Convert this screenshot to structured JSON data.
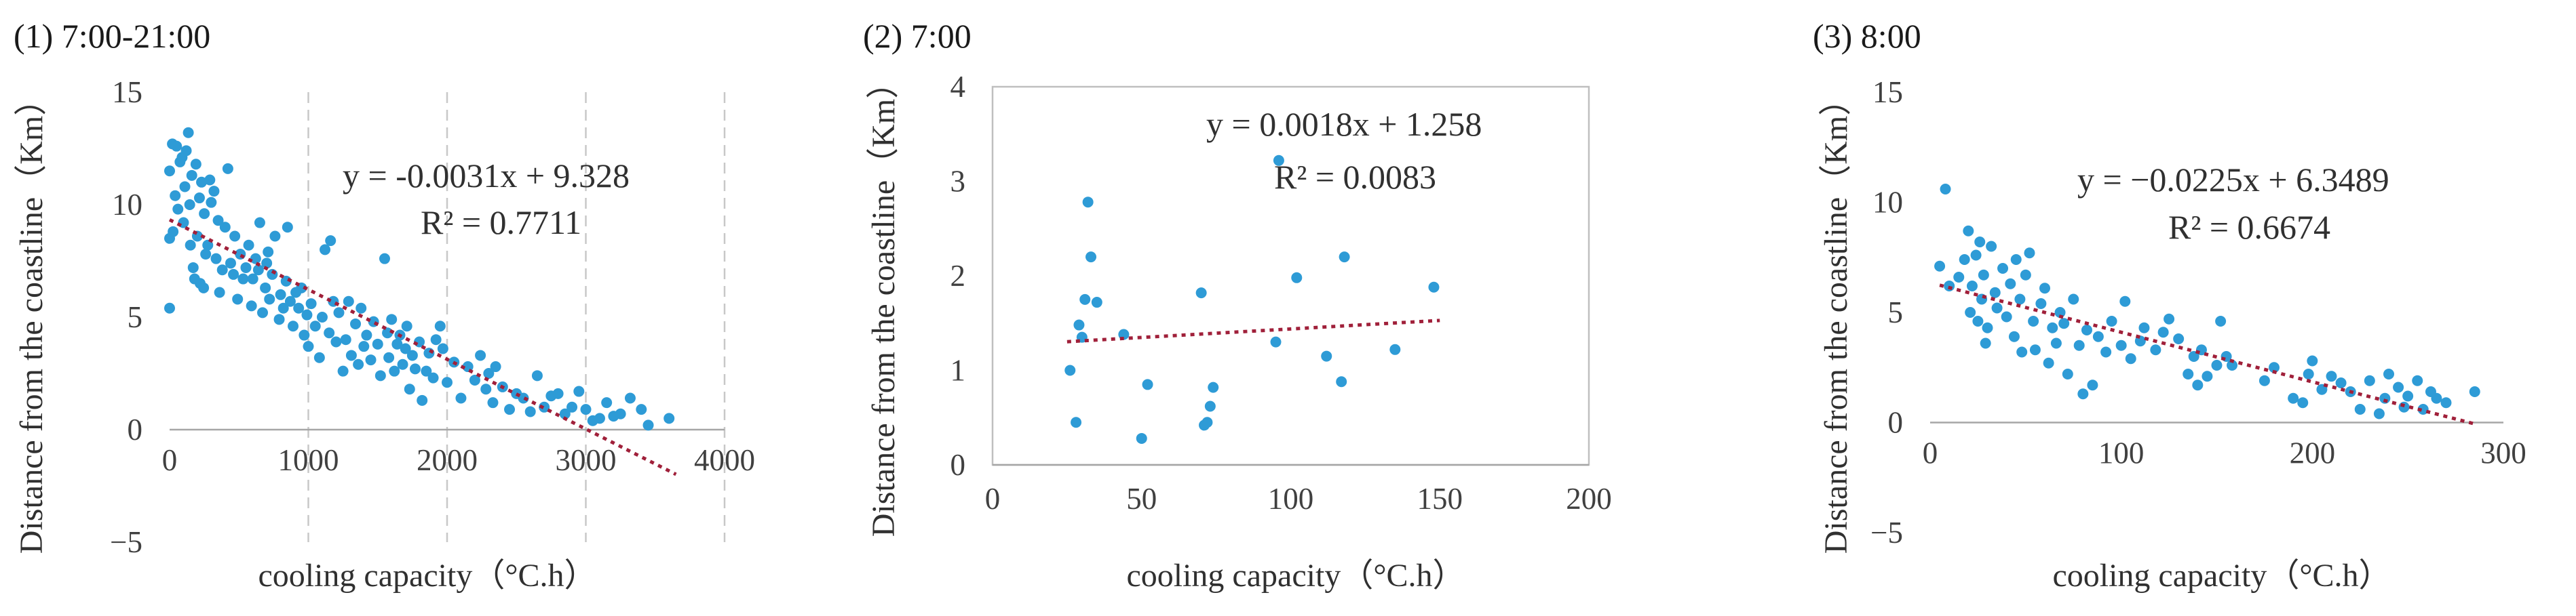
{
  "chart_data": [
    {
      "type": "scatter",
      "panel_title": "(1) 7:00-21:00",
      "xlabel": "cooling capacity（°C.h）",
      "ylabel": "Distance from the coastline（Km）",
      "xlim": [
        0,
        4000
      ],
      "ylim": [
        -5,
        15
      ],
      "xticks": [
        0,
        1000,
        2000,
        3000,
        4000
      ],
      "yticks": [
        -5,
        0,
        5,
        10,
        15
      ],
      "x_tick_labels": [
        "0",
        "1000",
        "2000",
        "3000",
        "4000"
      ],
      "y_tick_labels": [
        "−5",
        "0",
        "5",
        "10",
        "15"
      ],
      "vertical_grid": true,
      "equation": "y = -0.0031x + 9.328",
      "r_squared": "R² = 0.7711",
      "trendline": {
        "slope": -0.0031,
        "intercept": 9.328,
        "x_range": [
          0,
          3650
        ]
      },
      "points": [
        [
          0,
          11.5
        ],
        [
          0,
          8.5
        ],
        [
          0,
          5.4
        ],
        [
          20,
          12.7
        ],
        [
          25,
          8.8
        ],
        [
          40,
          10.4
        ],
        [
          50,
          12.6
        ],
        [
          60,
          9.8
        ],
        [
          75,
          11.9
        ],
        [
          90,
          12.1
        ],
        [
          100,
          9.2
        ],
        [
          110,
          10.8
        ],
        [
          120,
          12.4
        ],
        [
          135,
          13.2
        ],
        [
          145,
          10.0
        ],
        [
          150,
          8.2
        ],
        [
          160,
          11.3
        ],
        [
          170,
          7.2
        ],
        [
          180,
          6.7
        ],
        [
          190,
          11.8
        ],
        [
          200,
          8.6
        ],
        [
          215,
          10.3
        ],
        [
          220,
          6.5
        ],
        [
          230,
          11.0
        ],
        [
          245,
          6.3
        ],
        [
          250,
          9.6
        ],
        [
          260,
          7.8
        ],
        [
          275,
          8.2
        ],
        [
          290,
          11.1
        ],
        [
          300,
          10.1
        ],
        [
          320,
          10.6
        ],
        [
          335,
          7.6
        ],
        [
          350,
          9.3
        ],
        [
          360,
          6.1
        ],
        [
          380,
          7.1
        ],
        [
          400,
          9.0
        ],
        [
          420,
          11.6
        ],
        [
          440,
          7.4
        ],
        [
          460,
          6.9
        ],
        [
          470,
          8.6
        ],
        [
          490,
          5.8
        ],
        [
          510,
          7.8
        ],
        [
          530,
          6.7
        ],
        [
          550,
          7.2
        ],
        [
          570,
          8.2
        ],
        [
          590,
          5.5
        ],
        [
          600,
          6.7
        ],
        [
          620,
          7.6
        ],
        [
          640,
          7.1
        ],
        [
          650,
          9.2
        ],
        [
          670,
          5.2
        ],
        [
          690,
          6.3
        ],
        [
          700,
          7.4
        ],
        [
          710,
          7.9
        ],
        [
          720,
          5.8
        ],
        [
          740,
          6.9
        ],
        [
          760,
          8.6
        ],
        [
          790,
          4.9
        ],
        [
          800,
          6.0
        ],
        [
          820,
          5.4
        ],
        [
          840,
          6.6
        ],
        [
          850,
          9.0
        ],
        [
          870,
          5.7
        ],
        [
          890,
          4.6
        ],
        [
          910,
          6.1
        ],
        [
          930,
          5.4
        ],
        [
          950,
          6.3
        ],
        [
          970,
          4.2
        ],
        [
          990,
          5.1
        ],
        [
          1000,
          3.7
        ],
        [
          1020,
          5.6
        ],
        [
          1050,
          4.6
        ],
        [
          1080,
          3.2
        ],
        [
          1100,
          5.0
        ],
        [
          1120,
          8.0
        ],
        [
          1150,
          4.3
        ],
        [
          1160,
          8.4
        ],
        [
          1180,
          5.7
        ],
        [
          1200,
          3.9
        ],
        [
          1220,
          5.2
        ],
        [
          1250,
          2.6
        ],
        [
          1270,
          4.0
        ],
        [
          1290,
          5.7
        ],
        [
          1310,
          3.3
        ],
        [
          1340,
          4.7
        ],
        [
          1360,
          2.9
        ],
        [
          1380,
          5.4
        ],
        [
          1400,
          3.7
        ],
        [
          1420,
          4.2
        ],
        [
          1450,
          3.1
        ],
        [
          1470,
          4.8
        ],
        [
          1500,
          3.8
        ],
        [
          1520,
          2.4
        ],
        [
          1550,
          7.6
        ],
        [
          1570,
          4.3
        ],
        [
          1580,
          3.2
        ],
        [
          1600,
          4.9
        ],
        [
          1620,
          2.6
        ],
        [
          1640,
          3.8
        ],
        [
          1660,
          4.2
        ],
        [
          1680,
          2.9
        ],
        [
          1700,
          3.6
        ],
        [
          1710,
          4.6
        ],
        [
          1730,
          1.8
        ],
        [
          1750,
          3.3
        ],
        [
          1770,
          2.7
        ],
        [
          1800,
          3.9
        ],
        [
          1820,
          1.3
        ],
        [
          1850,
          2.6
        ],
        [
          1870,
          3.4
        ],
        [
          1900,
          2.3
        ],
        [
          1920,
          4.0
        ],
        [
          1950,
          4.6
        ],
        [
          1970,
          3.6
        ],
        [
          2000,
          2.1
        ],
        [
          2050,
          3.0
        ],
        [
          2100,
          1.4
        ],
        [
          2150,
          2.8
        ],
        [
          2200,
          2.2
        ],
        [
          2240,
          3.3
        ],
        [
          2280,
          1.8
        ],
        [
          2300,
          2.5
        ],
        [
          2330,
          1.2
        ],
        [
          2350,
          2.8
        ],
        [
          2400,
          1.9
        ],
        [
          2450,
          0.9
        ],
        [
          2500,
          1.6
        ],
        [
          2550,
          1.4
        ],
        [
          2600,
          0.8
        ],
        [
          2650,
          2.4
        ],
        [
          2700,
          1.0
        ],
        [
          2750,
          1.5
        ],
        [
          2800,
          1.6
        ],
        [
          2850,
          0.7
        ],
        [
          2900,
          1.0
        ],
        [
          2950,
          1.7
        ],
        [
          3000,
          0.9
        ],
        [
          3050,
          0.4
        ],
        [
          3100,
          0.5
        ],
        [
          3150,
          1.2
        ],
        [
          3200,
          0.6
        ],
        [
          3250,
          0.7
        ],
        [
          3320,
          1.4
        ],
        [
          3400,
          0.9
        ],
        [
          3450,
          0.2
        ],
        [
          3600,
          0.5
        ]
      ]
    },
    {
      "type": "scatter",
      "panel_title": "(2) 7:00",
      "xlabel": "cooling capacity（°C.h）",
      "ylabel": "Distance from the coastline（Km）",
      "xlim": [
        0,
        200
      ],
      "ylim": [
        0,
        4
      ],
      "xticks": [
        0,
        50,
        100,
        150,
        200
      ],
      "yticks": [
        0,
        1,
        2,
        3,
        4
      ],
      "x_tick_labels": [
        "0",
        "50",
        "100",
        "150",
        "200"
      ],
      "y_tick_labels": [
        "0",
        "1",
        "2",
        "3",
        "4"
      ],
      "vertical_grid": false,
      "equation": "y = 0.0018x + 1.258",
      "r_squared": "R² = 0.0083",
      "trendline": {
        "slope": 0.0018,
        "intercept": 1.258,
        "x_range": [
          25,
          150
        ]
      },
      "points": [
        [
          26,
          1.0
        ],
        [
          28,
          0.45
        ],
        [
          29,
          1.48
        ],
        [
          30,
          1.35
        ],
        [
          31,
          1.75
        ],
        [
          32,
          2.78
        ],
        [
          33,
          2.2
        ],
        [
          35,
          1.72
        ],
        [
          44,
          1.38
        ],
        [
          50,
          0.28
        ],
        [
          52,
          0.85
        ],
        [
          70,
          1.82
        ],
        [
          71,
          0.42
        ],
        [
          72,
          0.45
        ],
        [
          73,
          0.62
        ],
        [
          74,
          0.82
        ],
        [
          95,
          1.3
        ],
        [
          96,
          3.22
        ],
        [
          102,
          1.98
        ],
        [
          112,
          1.15
        ],
        [
          117,
          0.88
        ],
        [
          118,
          2.2
        ],
        [
          135,
          1.22
        ],
        [
          148,
          1.88
        ]
      ]
    },
    {
      "type": "scatter",
      "panel_title": "(3) 8:00",
      "xlabel": "cooling capacity（°C.h）",
      "ylabel": "Distance from the coastline（Km）",
      "xlim": [
        0,
        300
      ],
      "ylim": [
        -5,
        15
      ],
      "xticks": [
        0,
        100,
        200,
        300
      ],
      "yticks": [
        -5,
        0,
        5,
        10,
        15
      ],
      "x_tick_labels": [
        "0",
        "100",
        "200",
        "300"
      ],
      "y_tick_labels": [
        "−5",
        "0",
        "5",
        "10",
        "15"
      ],
      "vertical_grid": false,
      "equation": "y = −0.0225x + 6.3489",
      "r_squared": "R² = 0.6674",
      "trendline": {
        "slope": -0.0225,
        "intercept": 6.3489,
        "x_range": [
          5,
          285
        ]
      },
      "points": [
        [
          5,
          7.1
        ],
        [
          8,
          10.6
        ],
        [
          10,
          6.2
        ],
        [
          15,
          6.6
        ],
        [
          18,
          7.4
        ],
        [
          20,
          8.7
        ],
        [
          21,
          5.0
        ],
        [
          22,
          6.2
        ],
        [
          24,
          7.6
        ],
        [
          25,
          4.6
        ],
        [
          26,
          8.2
        ],
        [
          27,
          5.6
        ],
        [
          28,
          6.7
        ],
        [
          29,
          3.6
        ],
        [
          30,
          4.3
        ],
        [
          32,
          8.0
        ],
        [
          34,
          5.9
        ],
        [
          35,
          5.2
        ],
        [
          38,
          7.0
        ],
        [
          40,
          4.8
        ],
        [
          42,
          6.3
        ],
        [
          44,
          3.9
        ],
        [
          45,
          7.4
        ],
        [
          47,
          5.6
        ],
        [
          48,
          3.2
        ],
        [
          50,
          6.7
        ],
        [
          52,
          7.7
        ],
        [
          54,
          4.6
        ],
        [
          55,
          3.3
        ],
        [
          58,
          5.4
        ],
        [
          60,
          6.1
        ],
        [
          62,
          2.7
        ],
        [
          64,
          4.3
        ],
        [
          66,
          3.6
        ],
        [
          68,
          5.0
        ],
        [
          70,
          4.5
        ],
        [
          72,
          2.2
        ],
        [
          75,
          5.6
        ],
        [
          78,
          3.5
        ],
        [
          80,
          1.3
        ],
        [
          82,
          4.2
        ],
        [
          85,
          1.7
        ],
        [
          88,
          3.9
        ],
        [
          92,
          3.2
        ],
        [
          95,
          4.6
        ],
        [
          100,
          3.5
        ],
        [
          102,
          5.5
        ],
        [
          105,
          2.9
        ],
        [
          110,
          3.7
        ],
        [
          112,
          4.3
        ],
        [
          118,
          3.3
        ],
        [
          122,
          4.1
        ],
        [
          125,
          4.7
        ],
        [
          130,
          3.8
        ],
        [
          135,
          2.2
        ],
        [
          138,
          3.0
        ],
        [
          140,
          1.7
        ],
        [
          142,
          3.3
        ],
        [
          145,
          2.1
        ],
        [
          150,
          2.6
        ],
        [
          152,
          4.6
        ],
        [
          155,
          3.0
        ],
        [
          158,
          2.6
        ],
        [
          175,
          1.9
        ],
        [
          180,
          2.5
        ],
        [
          190,
          1.1
        ],
        [
          195,
          0.9
        ],
        [
          198,
          2.2
        ],
        [
          200,
          2.8
        ],
        [
          205,
          1.5
        ],
        [
          210,
          2.1
        ],
        [
          215,
          1.8
        ],
        [
          220,
          1.4
        ],
        [
          225,
          0.6
        ],
        [
          230,
          1.9
        ],
        [
          235,
          0.4
        ],
        [
          238,
          1.1
        ],
        [
          240,
          2.2
        ],
        [
          245,
          1.6
        ],
        [
          248,
          0.7
        ],
        [
          250,
          1.2
        ],
        [
          255,
          1.9
        ],
        [
          258,
          0.6
        ],
        [
          262,
          1.4
        ],
        [
          265,
          1.1
        ],
        [
          270,
          0.9
        ],
        [
          285,
          1.4
        ]
      ]
    }
  ]
}
